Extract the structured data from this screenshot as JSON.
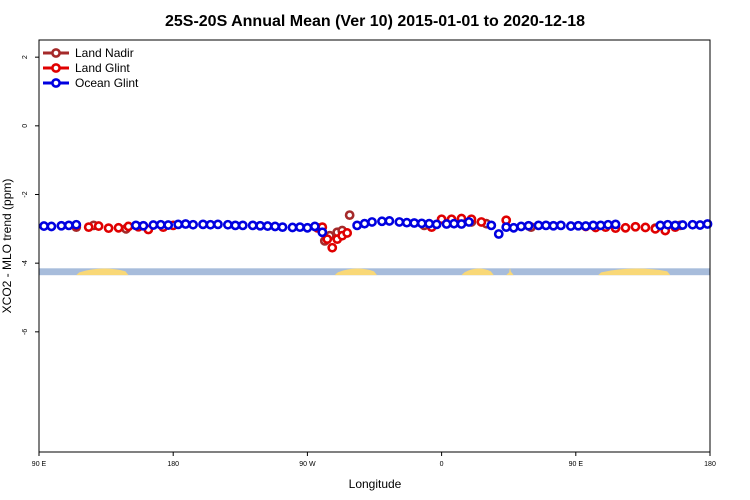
{
  "chart_data": {
    "type": "scatter",
    "title": "25S-20S Annual Mean (Ver 10)   2015-01-01 to 2020-12-18",
    "xlabel": "Longitude",
    "ylabel": "XCO2 - MLO trend (ppm)",
    "xlim": [
      -90,
      180
    ],
    "ylim": [
      -9.5,
      2.5
    ],
    "x_ticks": [
      {
        "value": -90,
        "label": "90 E"
      },
      {
        "value": -36,
        "label": "180"
      },
      {
        "value": 18,
        "label": "90 W"
      },
      {
        "value": 72,
        "label": "0"
      },
      {
        "value": 126,
        "label": "90 E"
      },
      {
        "value": 180,
        "label": "180"
      }
    ],
    "y_ticks": [
      {
        "value": 2,
        "label": "2"
      },
      {
        "value": 0,
        "label": "0"
      },
      {
        "value": -2,
        "label": "-2"
      },
      {
        "value": -4,
        "label": "-4"
      },
      {
        "value": -6,
        "label": "-6"
      }
    ],
    "legend_position": "top-left",
    "map_strip": {
      "y_range": [
        -4.35,
        -4.15
      ],
      "ocean_color": "#a7bcdb",
      "land_color": "#f9d877",
      "land_segments": [
        [
          -75,
          -54
        ],
        [
          29,
          46
        ],
        [
          80,
          93
        ],
        [
          98,
          101
        ],
        [
          135,
          164
        ]
      ]
    },
    "series": [
      {
        "name": "Land Nadir",
        "color": "#a52a2a",
        "x": [
          -75,
          -68,
          -55,
          -40,
          25,
          27,
          30,
          32,
          35,
          65,
          84,
          90,
          108,
          158,
          168
        ],
        "y": [
          -2.95,
          -2.9,
          -3.0,
          -2.93,
          -3.35,
          -3.2,
          -3.1,
          -3.05,
          -2.6,
          -2.9,
          -2.8,
          -2.85,
          -2.95,
          -2.98,
          -2.9
        ]
      },
      {
        "name": "Land Glint",
        "color": "#e00000",
        "x": [
          -75,
          -70,
          -66,
          -62,
          -58,
          -54,
          -50,
          -46,
          -40,
          -36,
          22,
          24,
          26,
          28,
          30,
          32,
          34,
          68,
          72,
          76,
          80,
          84,
          88,
          98,
          130,
          134,
          138,
          142,
          146,
          150,
          154,
          158,
          162,
          166
        ],
        "y": [
          -2.9,
          -2.95,
          -2.92,
          -2.98,
          -2.97,
          -2.93,
          -2.94,
          -3.02,
          -2.95,
          -2.9,
          -2.97,
          -2.95,
          -3.3,
          -3.55,
          -3.3,
          -3.2,
          -3.12,
          -2.95,
          -2.72,
          -2.72,
          -2.7,
          -2.72,
          -2.8,
          -2.75,
          -2.93,
          -2.96,
          -2.95,
          -2.98,
          -2.97,
          -2.94,
          -2.96,
          -3.0,
          -3.05,
          -2.95
        ]
      },
      {
        "name": "Ocean Glint",
        "color": "#0000e0",
        "x": [
          -88,
          -85,
          -81,
          -78,
          -75,
          -51,
          -48,
          -44,
          -41,
          -38,
          -34,
          -31,
          -28,
          -24,
          -21,
          -18,
          -14,
          -11,
          -8,
          -4,
          -1,
          2,
          5,
          8,
          12,
          15,
          18,
          21,
          24,
          38,
          41,
          44,
          48,
          51,
          55,
          58,
          61,
          64,
          67,
          70,
          74,
          77,
          80,
          83,
          92,
          95,
          98,
          101,
          104,
          107,
          111,
          114,
          117,
          120,
          124,
          127,
          130,
          133,
          136,
          139,
          142,
          160,
          163,
          166,
          169,
          173,
          176,
          179
        ],
        "y": [
          -2.92,
          -2.93,
          -2.91,
          -2.9,
          -2.88,
          -2.9,
          -2.91,
          -2.89,
          -2.88,
          -2.89,
          -2.87,
          -2.86,
          -2.88,
          -2.87,
          -2.88,
          -2.87,
          -2.88,
          -2.9,
          -2.9,
          -2.9,
          -2.91,
          -2.92,
          -2.93,
          -2.95,
          -2.96,
          -2.95,
          -2.97,
          -2.93,
          -3.1,
          -2.9,
          -2.85,
          -2.8,
          -2.78,
          -2.77,
          -2.8,
          -2.82,
          -2.83,
          -2.84,
          -2.85,
          -2.87,
          -2.86,
          -2.85,
          -2.86,
          -2.8,
          -2.9,
          -3.15,
          -2.95,
          -2.97,
          -2.93,
          -2.91,
          -2.9,
          -2.9,
          -2.91,
          -2.9,
          -2.92,
          -2.91,
          -2.92,
          -2.9,
          -2.9,
          -2.88,
          -2.87,
          -2.9,
          -2.88,
          -2.9,
          -2.89,
          -2.88,
          -2.89,
          -2.86
        ]
      }
    ]
  }
}
